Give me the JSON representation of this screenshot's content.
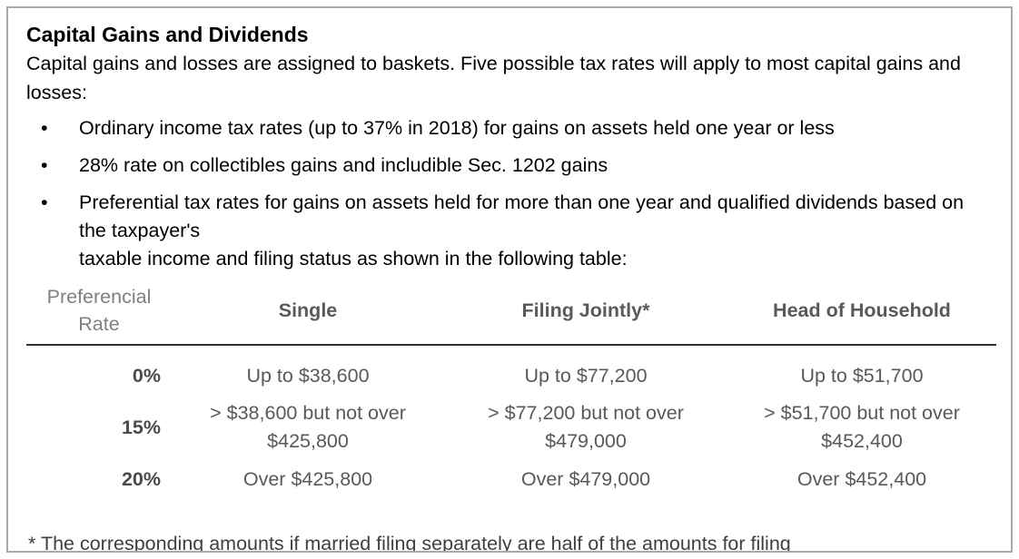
{
  "doc": {
    "title": "Capital Gains and Dividends",
    "intro": "Capital gains and losses are assigned to baskets. Five possible tax rates will apply to most capital gains and losses:",
    "bullets": [
      "Ordinary income tax rates (up to 37% in 2018) for gains on assets held one year or less",
      "28% rate on collectibles gains and includible Sec. 1202 gains",
      "Preferential tax rates for gains on assets held for more than one year and qualified dividends based on the taxpayer's\ntaxable income and filing status as shown in the following table:"
    ],
    "table": {
      "rate_header": "Preferencial\nRate",
      "columns": [
        "Single",
        "Filing Jointly*",
        "Head of Household"
      ],
      "rows": [
        {
          "rate": "0%",
          "cells": [
            "Up to $38,600",
            "Up to $77,200",
            "Up to $51,700"
          ]
        },
        {
          "rate": "15%",
          "cells": [
            "> $38,600 but not over\n$425,800",
            "> $77,200 but not over\n$479,000",
            "> $51,700 but not over\n$452,400"
          ]
        },
        {
          "rate": "20%",
          "cells": [
            "Over $425,800",
            "Over $479,000",
            "Over $452,400"
          ]
        }
      ]
    },
    "footnote": "* The corresponding amounts if married filing separately are half of the amounts for filing"
  }
}
